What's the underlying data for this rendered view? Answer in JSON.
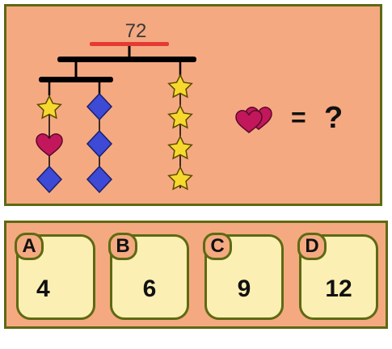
{
  "puzzle": {
    "total": "72",
    "equals": "=",
    "unknown": "?",
    "left_strand_1": [
      "star",
      "heart",
      "diamond"
    ],
    "left_strand_2": [
      "diamond",
      "diamond",
      "diamond"
    ],
    "right_strand": [
      "star",
      "star",
      "star",
      "star"
    ],
    "question_shape": "heart"
  },
  "colors": {
    "background": "#f5a981",
    "border": "#5d6a12",
    "star": "#f7d92e",
    "heart": "#c2185b",
    "diamond": "#3d4ad6",
    "total_bar": "#e53935"
  },
  "options": [
    {
      "letter": "A",
      "value": "4"
    },
    {
      "letter": "B",
      "value": "6"
    },
    {
      "letter": "C",
      "value": "9"
    },
    {
      "letter": "D",
      "value": "12"
    }
  ]
}
